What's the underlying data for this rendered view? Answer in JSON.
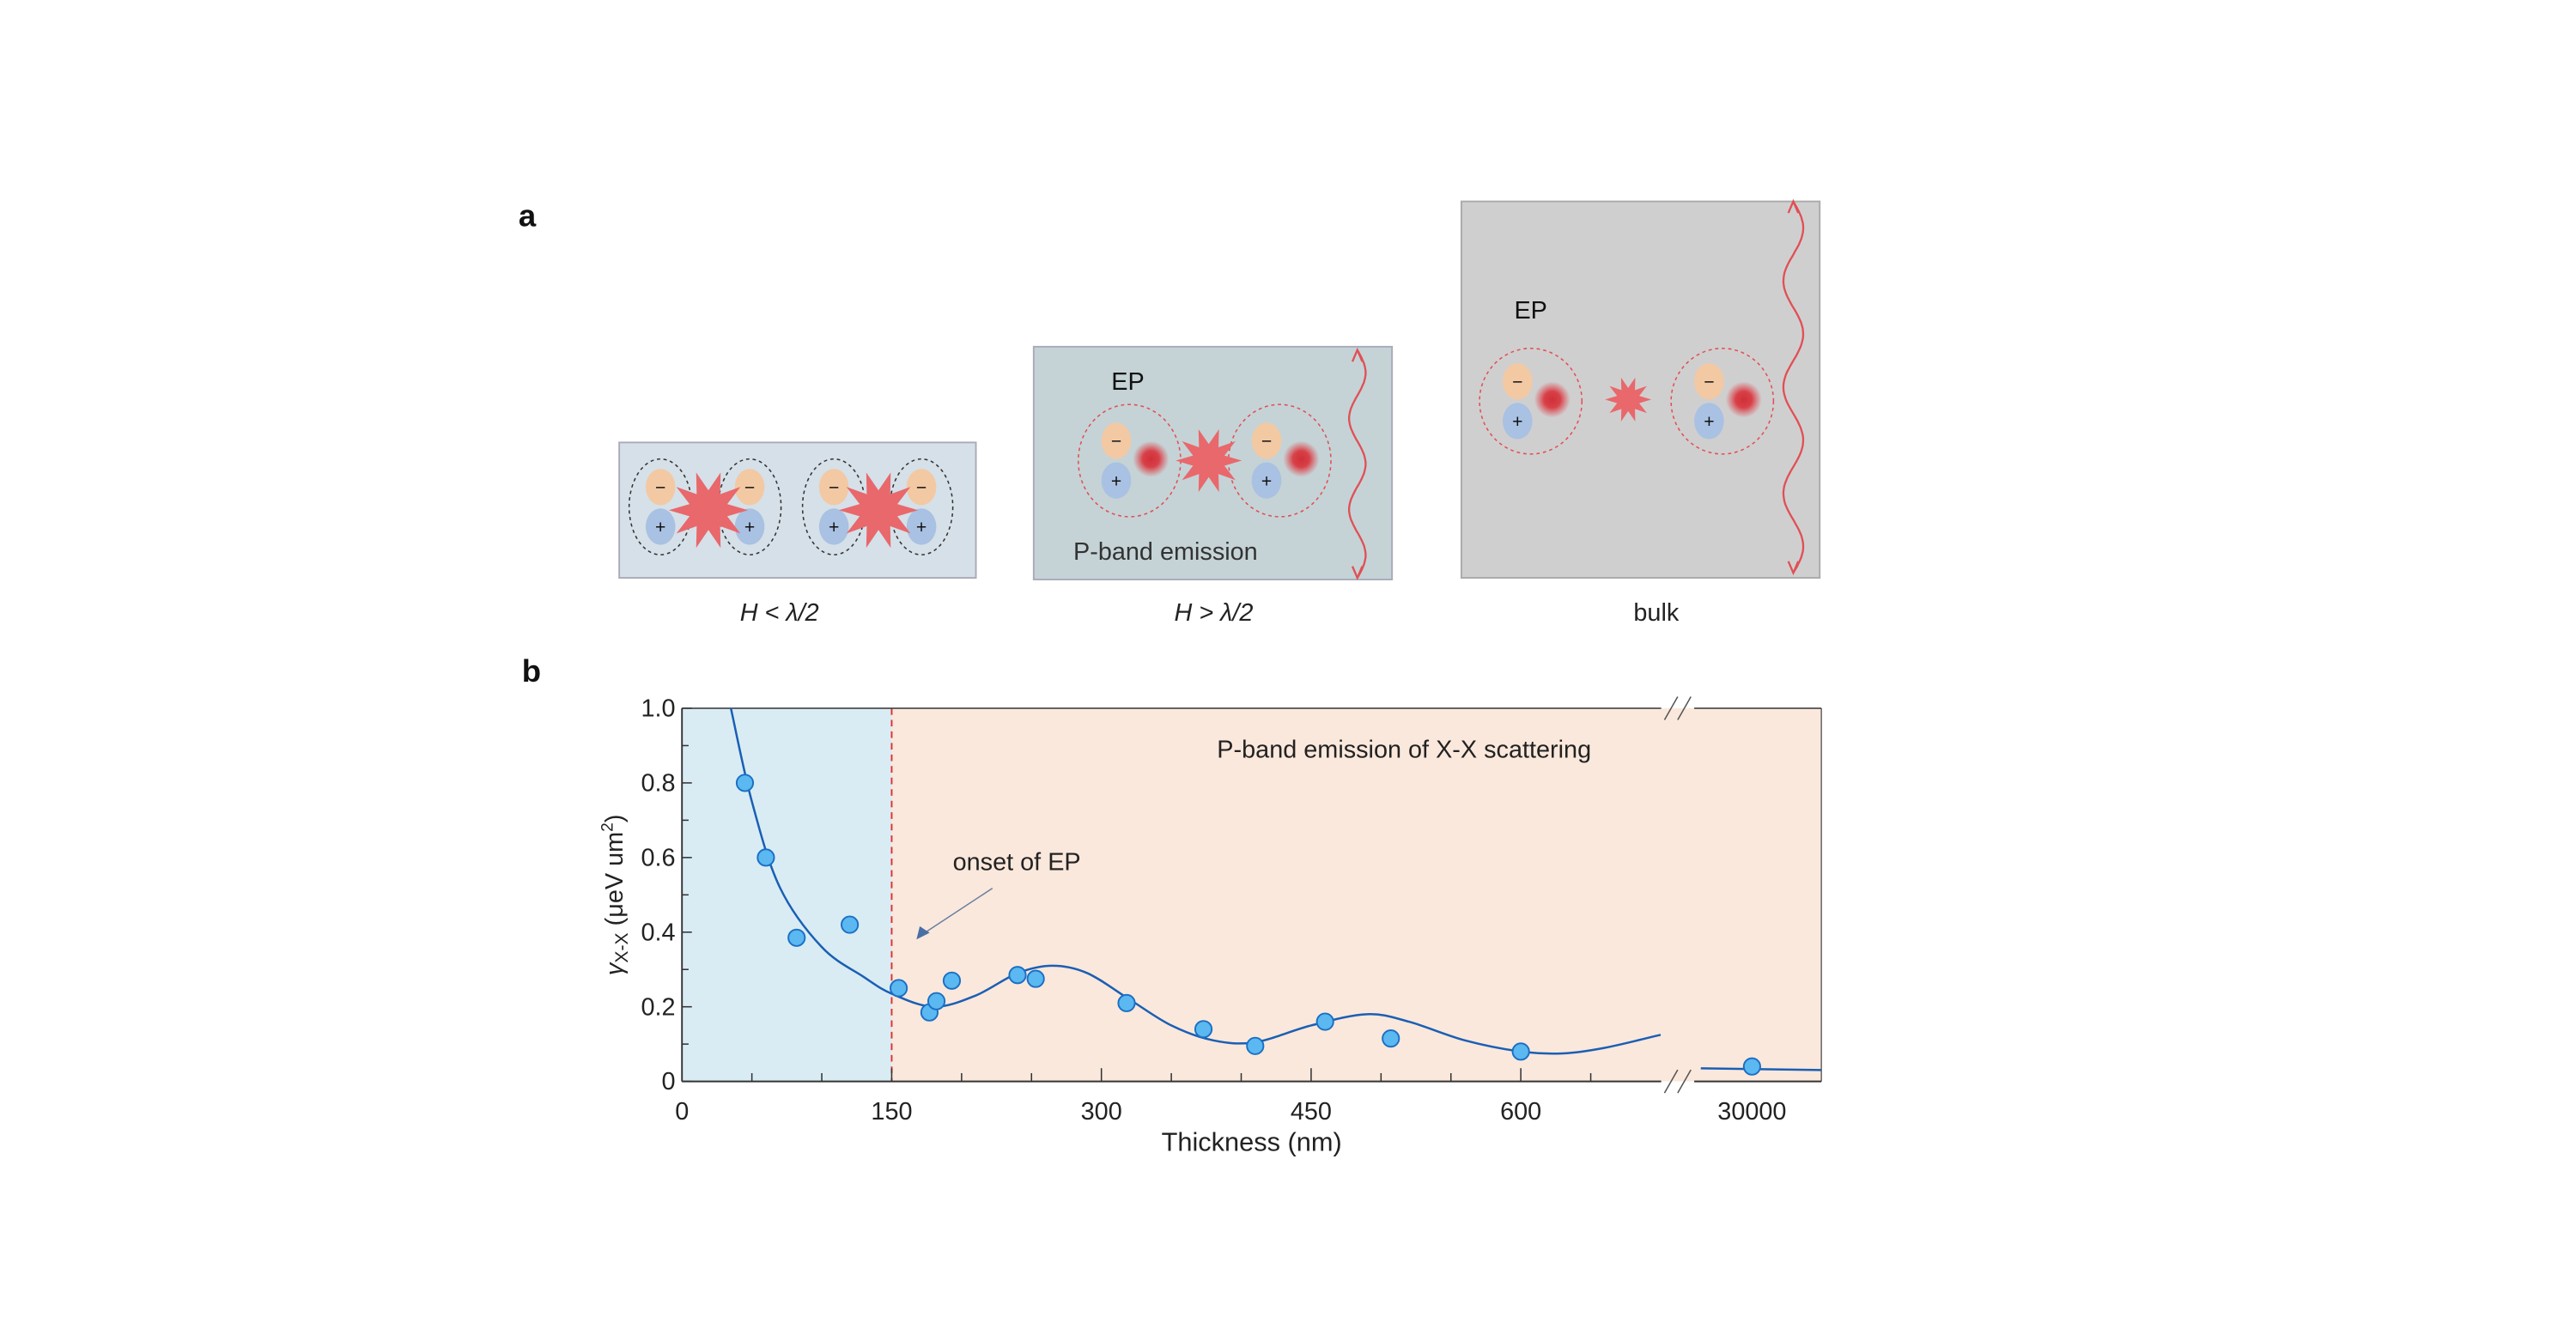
{
  "panel_a": {
    "letter": "a",
    "panels": [
      {
        "caption_var": "H",
        "caption_rest": " < λ/2"
      },
      {
        "caption_var": "H",
        "caption_rest": " > λ/2",
        "ep_label": "EP",
        "emission_label": "P-band emission"
      },
      {
        "caption": "bulk",
        "ep_label": "EP"
      }
    ],
    "minus_sign": "−",
    "plus_sign": "+",
    "colors": {
      "panel1": "#d6e0e8",
      "panel2": "#c5d3d6",
      "panel3": "#d0cfd0",
      "electron": "#f2c9a3",
      "hole": "#a9c1e2",
      "burst": "#e8686c",
      "photon": "#e05055"
    }
  },
  "chart_data": {
    "panel_letter": "b",
    "type": "scatter",
    "title": "",
    "xlabel": "Thickness (nm)",
    "ylabel_symbol": "γ",
    "ylabel_sub": "X-X",
    "ylabel_unit": " (μeV um",
    "ylabel_sup": "2",
    "ylabel_close": ")",
    "ylim": [
      0,
      1.0
    ],
    "xlim_main": [
      0,
      700
    ],
    "x_break_segment": {
      "tick": 30000
    },
    "xticks": [
      {
        "v": 0,
        "label": "0"
      },
      {
        "v": 150,
        "label": "150"
      },
      {
        "v": 300,
        "label": "300"
      },
      {
        "v": 450,
        "label": "450"
      },
      {
        "v": 600,
        "label": "600"
      },
      {
        "v": 30000,
        "label": "30000"
      }
    ],
    "yticks": [
      {
        "v": 0,
        "label": "0"
      },
      {
        "v": 0.2,
        "label": "0.2"
      },
      {
        "v": 0.4,
        "label": "0.4"
      },
      {
        "v": 0.6,
        "label": "0.6"
      },
      {
        "v": 0.8,
        "label": "0.8"
      },
      {
        "v": 1.0,
        "label": "1.0"
      }
    ],
    "regions": [
      {
        "from": 0,
        "to": 150,
        "color": "#d9ecf4"
      },
      {
        "from": 150,
        "to": 30000,
        "color": "#fbe8dc"
      }
    ],
    "threshold_x": 150,
    "annotations": {
      "region_label": "P-band emission of X-X scattering",
      "onset_label": "onset of EP"
    },
    "points": [
      {
        "x": 45,
        "y": 0.8
      },
      {
        "x": 60,
        "y": 0.6
      },
      {
        "x": 82,
        "y": 0.385
      },
      {
        "x": 120,
        "y": 0.42
      },
      {
        "x": 155,
        "y": 0.25
      },
      {
        "x": 177,
        "y": 0.185
      },
      {
        "x": 182,
        "y": 0.215
      },
      {
        "x": 193,
        "y": 0.27
      },
      {
        "x": 240,
        "y": 0.285
      },
      {
        "x": 253,
        "y": 0.275
      },
      {
        "x": 318,
        "y": 0.21
      },
      {
        "x": 373,
        "y": 0.14
      },
      {
        "x": 410,
        "y": 0.095
      },
      {
        "x": 460,
        "y": 0.16
      },
      {
        "x": 507,
        "y": 0.115
      },
      {
        "x": 600,
        "y": 0.08
      },
      {
        "x": 30000,
        "y": 0.04
      }
    ],
    "fit_curve": [
      [
        35,
        1.0
      ],
      [
        50,
        0.75
      ],
      [
        70,
        0.52
      ],
      [
        100,
        0.36
      ],
      [
        130,
        0.28
      ],
      [
        150,
        0.235
      ],
      [
        180,
        0.2
      ],
      [
        210,
        0.23
      ],
      [
        240,
        0.29
      ],
      [
        265,
        0.31
      ],
      [
        290,
        0.29
      ],
      [
        320,
        0.22
      ],
      [
        350,
        0.15
      ],
      [
        380,
        0.11
      ],
      [
        410,
        0.105
      ],
      [
        450,
        0.15
      ],
      [
        490,
        0.18
      ],
      [
        520,
        0.16
      ],
      [
        560,
        0.11
      ],
      [
        600,
        0.08
      ],
      [
        630,
        0.075
      ],
      [
        660,
        0.09
      ],
      [
        700,
        0.125
      ]
    ],
    "fit_bulk_value": 0.035,
    "colors": {
      "point": "#5bb8f0",
      "point_edge": "#1a6fc4",
      "fit": "#1a5fb4",
      "threshold": "#e03030"
    }
  }
}
